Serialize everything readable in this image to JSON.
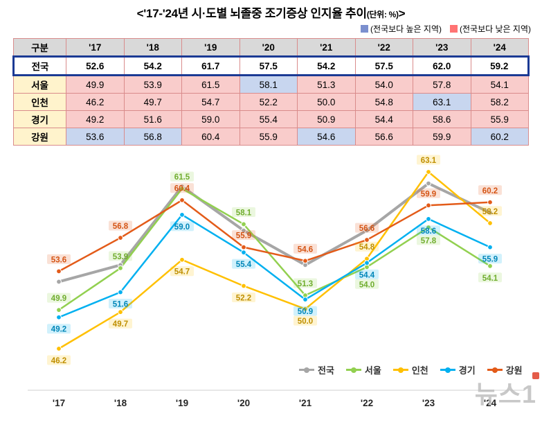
{
  "title": {
    "main": "<'17-'24년 시·도별 뇌졸중 조기증상 인지율 추이",
    "unit": "(단위: %)",
    "close": ">"
  },
  "color_key": {
    "high": {
      "label": "(전국보다 높은 지역)",
      "color": "#7B8FCE"
    },
    "low": {
      "label": "(전국보다 낮은 지역)",
      "color": "#FF7373"
    }
  },
  "table": {
    "col_header_label": "구분",
    "year_headers": [
      "'17",
      "'18",
      "'19",
      "'20",
      "'21",
      "'22",
      "'23",
      "'24"
    ],
    "rows": [
      {
        "key": "national",
        "label": "전국",
        "national": true,
        "values": [
          "52.6",
          "54.2",
          "61.7",
          "57.5",
          "54.2",
          "57.5",
          "62.0",
          "59.2"
        ]
      },
      {
        "key": "seoul",
        "label": "서울",
        "values": [
          "49.9",
          "53.9",
          "61.5",
          "58.1",
          "51.3",
          "54.0",
          "57.8",
          "54.1"
        ]
      },
      {
        "key": "incheon",
        "label": "인천",
        "values": [
          "46.2",
          "49.7",
          "54.7",
          "52.2",
          "50.0",
          "54.8",
          "63.1",
          "58.2"
        ]
      },
      {
        "key": "gyeonggi",
        "label": "경기",
        "values": [
          "49.2",
          "51.6",
          "59.0",
          "55.4",
          "50.9",
          "54.4",
          "58.6",
          "55.9"
        ]
      },
      {
        "key": "gangwon",
        "label": "강원",
        "values": [
          "53.6",
          "56.8",
          "60.4",
          "55.9",
          "54.6",
          "56.6",
          "59.9",
          "60.2"
        ]
      }
    ],
    "colors": {
      "higher_bg": "#C8D6EF",
      "lower_bg": "#F9CCCB",
      "header_bg": "#D9D9D9",
      "label_bg": "#FFF3CC",
      "highlight_border": "#1B3A94",
      "grid_border": "#D98B8B"
    }
  },
  "chart_data": {
    "type": "line",
    "unit": "%",
    "x": [
      "'17",
      "'18",
      "'19",
      "'20",
      "'21",
      "'22",
      "'23",
      "'24"
    ],
    "series": [
      {
        "key": "national",
        "name": "전국",
        "color": "#A6A6A6",
        "labeled": false,
        "values": [
          "52.6",
          "54.2",
          "61.7",
          "57.5",
          "54.2",
          "57.5",
          "62.0",
          "59.2"
        ]
      },
      {
        "key": "seoul",
        "name": "서울",
        "color": "#92D050",
        "label_color": "#70AD2E",
        "values": [
          "49.9",
          "53.9",
          "61.5",
          "58.1",
          "51.3",
          "54.0",
          "57.8",
          "54.1"
        ]
      },
      {
        "key": "incheon",
        "name": "인천",
        "color": "#FFC000",
        "label_color": "#BF8F00",
        "values": [
          "46.2",
          "49.7",
          "54.7",
          "52.2",
          "50.0",
          "54.8",
          "63.1",
          "58.2"
        ]
      },
      {
        "key": "gyeonggi",
        "name": "경기",
        "color": "#00B0F0",
        "label_color": "#0086B8",
        "values": [
          "49.2",
          "51.6",
          "59.0",
          "55.4",
          "50.9",
          "54.4",
          "58.6",
          "55.9"
        ]
      },
      {
        "key": "gangwon",
        "name": "강원",
        "color": "#E35B19",
        "label_color": "#D45414",
        "values": [
          "53.6",
          "56.8",
          "60.4",
          "55.9",
          "54.6",
          "56.6",
          "59.9",
          "60.2"
        ]
      }
    ],
    "grid": false,
    "legend_position": "bottom",
    "xlabel": "",
    "ylabel": ""
  },
  "watermark": {
    "text": "뉴스1"
  }
}
